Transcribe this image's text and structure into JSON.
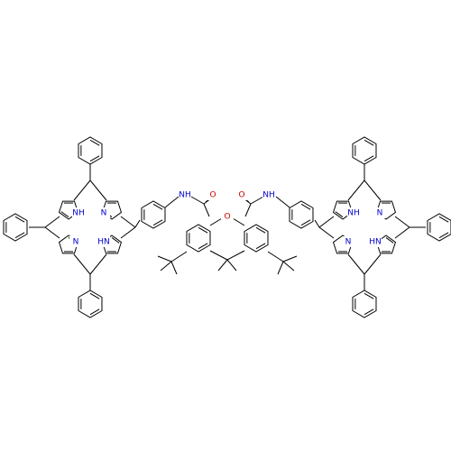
{
  "atoms": [
    {
      "label": "NH"
    },
    {
      "label": "N"
    },
    {
      "label": "N"
    },
    {
      "label": "HN"
    },
    {
      "label": "NH"
    },
    {
      "label": "O"
    },
    {
      "label": "O"
    },
    {
      "label": "O"
    },
    {
      "label": "NH"
    },
    {
      "label": "NH"
    },
    {
      "label": "N"
    },
    {
      "label": "N"
    },
    {
      "label": "HN"
    }
  ]
}
